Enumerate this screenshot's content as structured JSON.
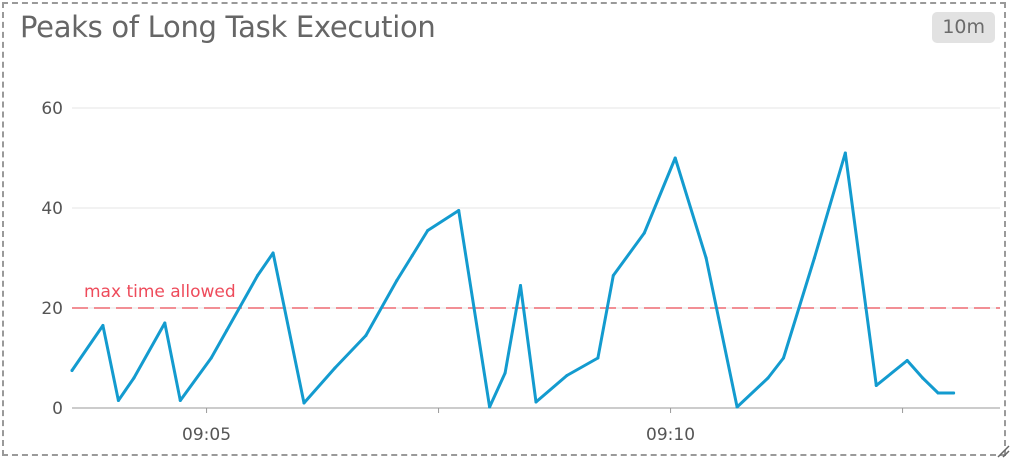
{
  "widget": {
    "title": "Peaks of Long Task Execution",
    "time_range": "10m"
  },
  "colors": {
    "series": "#139bcf",
    "marker": "#ee6a72",
    "marker_text": "#ee4b5b",
    "grid": "#e4e4e4",
    "axis": "#9a9a9a"
  },
  "chart_data": {
    "type": "line",
    "xlabel": "",
    "ylabel": "",
    "ylim": [
      0,
      60
    ],
    "y_ticks": [
      0,
      20,
      40,
      60
    ],
    "x_ticks": [
      "09:05",
      "09:10"
    ],
    "grid": "horizontal",
    "marker": {
      "label": "max time allowed",
      "value": 20,
      "style": "dashed"
    },
    "series": [
      {
        "x": [
          "09:03:33",
          "09:03:53",
          "09:04:03",
          "09:04:13",
          "09:04:33",
          "09:04:43",
          "09:05:03",
          "09:05:13",
          "09:05:33",
          "09:05:43",
          "09:06:03",
          "09:06:23",
          "09:06:43",
          "09:07:03",
          "09:07:13",
          "09:07:23",
          "09:07:43",
          "09:08:03",
          "09:08:13",
          "09:08:23",
          "09:08:33",
          "09:08:53",
          "09:09:13",
          "09:09:23",
          "09:09:43",
          "09:10:03",
          "09:10:23",
          "09:10:43",
          "09:11:03",
          "09:11:13",
          "09:11:33",
          "09:11:53",
          "09:12:13",
          "09:12:33",
          "09:12:43",
          "09:12:53",
          "09:13:03"
        ],
        "y": [
          7.5,
          16.5,
          1.5,
          6,
          17,
          1.5,
          10,
          15.5,
          26.5,
          31,
          1,
          8,
          14.5,
          25.5,
          30.5,
          35.5,
          39.5,
          0.2,
          7,
          24.5,
          1.2,
          6.5,
          10,
          26.5,
          35,
          50,
          30,
          0.2,
          6,
          10,
          30,
          51,
          4.5,
          9.5,
          6,
          3,
          3
        ]
      }
    ]
  }
}
